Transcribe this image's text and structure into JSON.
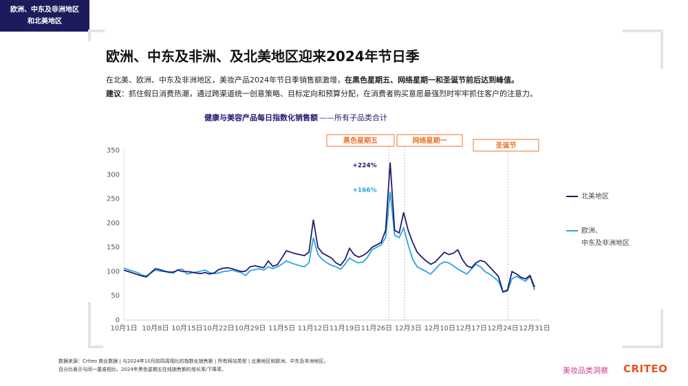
{
  "tag": "欧洲、中东及非洲地区\n和北美地区",
  "title": "欧洲、中东及非洲、及北美地区迎来2024年节日季",
  "intro": {
    "text": "在北美、欧洲、中东及非洲地区，美妆产品2024年节日季销售额激增，",
    "emphasis": "在黑色星期五、网络星期一和圣诞节前后达到峰值。"
  },
  "advice": {
    "label": "建议",
    "text": "：抓住假日消费热潮，通过跨渠道统一创意策略、目标定向和预算分配，在消费者购买意愿最强烈时牢牢抓住客户的注意力。"
  },
  "chart_data": {
    "type": "line",
    "title": "健康与美容产品每日指数化销售额",
    "subtitle": "——所有子品类合计",
    "categories": [
      "10月1日",
      null,
      null,
      null,
      null,
      null,
      null,
      "10月8日",
      null,
      null,
      null,
      null,
      null,
      null,
      "10月15日",
      null,
      null,
      null,
      null,
      null,
      null,
      "10月22日",
      null,
      null,
      null,
      null,
      null,
      null,
      "10月29日",
      null,
      null,
      null,
      null,
      null,
      null,
      "11月5日",
      null,
      null,
      null,
      null,
      null,
      null,
      "11月12日",
      null,
      null,
      null,
      null,
      null,
      null,
      "11月19日",
      null,
      null,
      null,
      null,
      null,
      null,
      "11月26日",
      null,
      null,
      null,
      null,
      null,
      null,
      "12月3日",
      null,
      null,
      null,
      null,
      null,
      null,
      "12月10日",
      null,
      null,
      null,
      null,
      null,
      null,
      "12月17日",
      null,
      null,
      null,
      null,
      null,
      null,
      "12月24日",
      null,
      null,
      null,
      null,
      null,
      null,
      "12月31日"
    ],
    "series": [
      {
        "name": "北美地区",
        "color": "#1f1a6b",
        "values": [
          103,
          100,
          97,
          94,
          91,
          89,
          98,
          106,
          104,
          101,
          99,
          99,
          103,
          100,
          100,
          99,
          97,
          96,
          98,
          95,
          97,
          104,
          107,
          108,
          106,
          103,
          100,
          101,
          110,
          112,
          110,
          108,
          122,
          111,
          114,
          128,
          143,
          140,
          137,
          135,
          133,
          140,
          207,
          150,
          138,
          133,
          128,
          118,
          113,
          125,
          148,
          135,
          130,
          133,
          140,
          150,
          155,
          160,
          185,
          325,
          185,
          180,
          222,
          185,
          160,
          140,
          130,
          122,
          115,
          120,
          130,
          140,
          135,
          138,
          145,
          125,
          112,
          108,
          118,
          123,
          120,
          110,
          100,
          90,
          58,
          62,
          100,
          95,
          88,
          85,
          92,
          68
        ]
      },
      {
        "name": "欧洲、\n中东及非洲地区",
        "color": "#29a3dc",
        "values": [
          107,
          104,
          101,
          98,
          93,
          91,
          97,
          103,
          101,
          100,
          98,
          97,
          104,
          105,
          95,
          97,
          99,
          101,
          103,
          98,
          96,
          97,
          100,
          101,
          103,
          100,
          98,
          92,
          102,
          104,
          106,
          103,
          110,
          106,
          110,
          115,
          122,
          118,
          115,
          112,
          110,
          118,
          170,
          135,
          125,
          118,
          113,
          110,
          105,
          115,
          128,
          122,
          118,
          120,
          130,
          145,
          150,
          155,
          170,
          265,
          175,
          170,
          190,
          155,
          125,
          110,
          105,
          100,
          95,
          105,
          115,
          120,
          118,
          112,
          105,
          100,
          95,
          105,
          115,
          110,
          100,
          95,
          88,
          80,
          58,
          60,
          85,
          90,
          85,
          80,
          90,
          62
        ]
      }
    ],
    "ylim": [
      0,
      350
    ],
    "yticks": [
      0,
      50,
      100,
      150,
      200,
      250,
      300,
      350
    ],
    "grid": false,
    "events": [
      "黑色星期五",
      "网络星期一",
      "圣诞节"
    ],
    "annotations": [
      "+224%",
      "+166%"
    ]
  },
  "footnotes": [
    "数据来源：Criteo 商业数据 | 与2024年10月前四周相比的指数化销售额 | 所有网站类型 | 北美地区和欧洲、中东及非洲地区。",
    "百分比表示与同一基准相比、2024年黑色星期五在线销售额的增长率/下降率。"
  ],
  "brand": "美妆品类洞察",
  "logo": "CRITEO"
}
